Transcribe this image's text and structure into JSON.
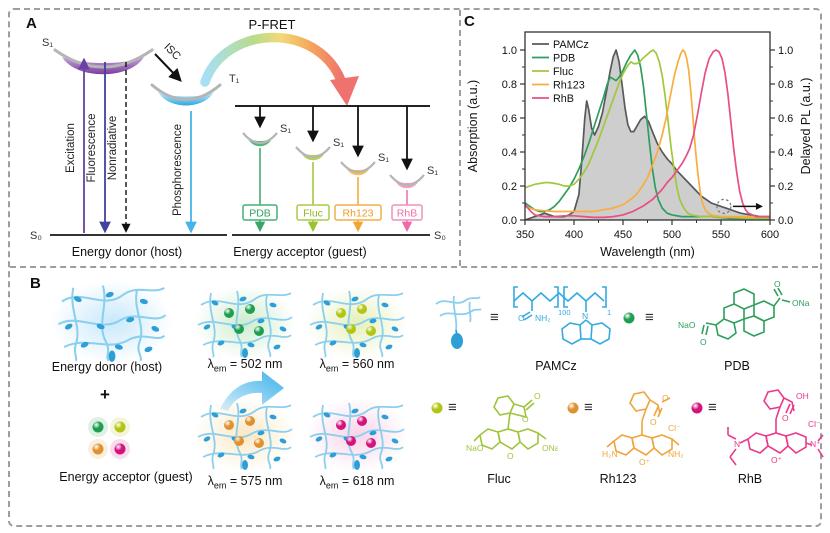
{
  "figure": {
    "panel_a": {
      "label": "A",
      "pfret_label": "P-FRET",
      "donor": {
        "s1": "S₁",
        "s0": "S₀",
        "t1": "T₁",
        "excitation": "Excitation",
        "fluorescence": "Fluorescence",
        "nonradiative": "Nonradiative",
        "isc": "ISC",
        "phosphorescence": "Phosphorescence",
        "caption": "Energy donor (host)"
      },
      "acceptor": {
        "s1": "S₁",
        "s0": "S₀",
        "caption": "Energy acceptor (guest)",
        "guests": [
          {
            "name": "PDB",
            "color": "#2f9e5c",
            "well": "#52b87c",
            "arrow": "#3aa566",
            "box": "#45b074"
          },
          {
            "name": "Fluc",
            "color": "#93b92a",
            "well": "#b6d254",
            "arrow": "#9cc32f",
            "box": "#a8cc45"
          },
          {
            "name": "Rh123",
            "color": "#ee9c20",
            "well": "#f4bd55",
            "arrow": "#f0a62f",
            "box": "#f3ae45"
          },
          {
            "name": "RhB",
            "color": "#ee6fa5",
            "well": "#f49ec5",
            "arrow": "#f06aaa",
            "box": "#f290bb"
          }
        ]
      },
      "palette": {
        "s1_well": "#8a4fa8",
        "t1_well": "#35abe2",
        "excitation_arrow": "#6b3fa3",
        "fluorescence_arrow": "#41419e",
        "phosphorescence_arrow": "#45b4e8",
        "pfret_gradient": [
          "#a8dff5",
          "#b8dc8c",
          "#f2d979",
          "#f5a95c",
          "#f0726e"
        ]
      }
    },
    "panel_b": {
      "label": "B",
      "donor_caption": "Energy donor (host)",
      "plus": "+",
      "acceptor_caption": "Energy acceptor (guest)",
      "equiv": "≡",
      "donor_glow": "#c9e8fb",
      "network_line_color": "#8bcfee",
      "network_dot_color": "#2d9fd6",
      "emissions": [
        {
          "lambda": "λ",
          "sub": "em",
          "value": "= 502 nm",
          "glow": "#cdeccd",
          "dot": "#1f9e4f"
        },
        {
          "lambda": "λ",
          "sub": "em",
          "value": "= 560 nm",
          "glow": "#e4f0bb",
          "dot": "#b3c513"
        },
        {
          "lambda": "λ",
          "sub": "em",
          "value": "= 575 nm",
          "glow": "#fbe8c4",
          "dot": "#e0912f"
        },
        {
          "lambda": "λ",
          "sub": "em",
          "value": "= 618 nm",
          "glow": "#f8d3e7",
          "dot": "#d4127c"
        }
      ],
      "molecules": {
        "pamcz": {
          "name": "PAMCz",
          "color": "#35aae1",
          "o": "O",
          "nh2": "NH₂",
          "n": "N",
          "sub100": "100",
          "sub1": "1"
        },
        "pdb": {
          "name": "PDB",
          "color": "#2f9e5c",
          "nao": "NaO",
          "o_left": "O",
          "o_right": "O",
          "ona": "ONa"
        },
        "fluc": {
          "name": "Fluc",
          "color": "#9fc53d",
          "nao": "NaO",
          "ona": "ONa",
          "o_ring": "O",
          "o_lactone": "O",
          "o_carbonyl": "O"
        },
        "rh123": {
          "name": "Rh123",
          "color": "#f0a43c",
          "h2n": "H₂N",
          "nh2": "NH₂",
          "o_plus": "O⁺",
          "cl": "Cl⁻",
          "o_ester1": "O",
          "o_ester2": "O"
        },
        "rhb": {
          "name": "RhB",
          "color": "#ea3a8c",
          "n": "N",
          "n_plus": "N⁺",
          "o_plus": "O⁺",
          "oh": "OH",
          "o_carbonyl": "O",
          "cl": "Cl⁻"
        }
      }
    },
    "panel_c": {
      "label": "C"
    }
  },
  "chart_data": {
    "type": "line",
    "xlabel": "Wavelength (nm)",
    "ylabel_left": "Absorption (a.u.)",
    "ylabel_right": "Delayed PL (a.u.)",
    "xlim": [
      350,
      600
    ],
    "ylim": [
      0.0,
      1.0
    ],
    "xticks": [
      350,
      400,
      450,
      500,
      550,
      600
    ],
    "yticks": [
      0.0,
      0.2,
      0.4,
      0.6,
      0.8,
      1.0
    ],
    "grid": false,
    "legend_position": "top-left",
    "annotation": {
      "type": "dashed-circle-right-arrow",
      "x_nm": 553,
      "y": 0.08
    },
    "series": [
      {
        "name": "PAMCz",
        "axis": "right",
        "color": "#58595b",
        "fill": "#c9c9c9",
        "points": [
          [
            350,
            0.0
          ],
          [
            355,
            0.01
          ],
          [
            360,
            0.02
          ],
          [
            365,
            0.03
          ],
          [
            370,
            0.04
          ],
          [
            375,
            0.03
          ],
          [
            380,
            0.02
          ],
          [
            390,
            0.02
          ],
          [
            395,
            0.03
          ],
          [
            400,
            0.05
          ],
          [
            405,
            0.15
          ],
          [
            408,
            0.35
          ],
          [
            411,
            0.6
          ],
          [
            413,
            0.7
          ],
          [
            415,
            0.65
          ],
          [
            418,
            0.54
          ],
          [
            421,
            0.5
          ],
          [
            425,
            0.55
          ],
          [
            429,
            0.63
          ],
          [
            433,
            0.75
          ],
          [
            437,
            0.88
          ],
          [
            440,
            0.96
          ],
          [
            443,
            1.0
          ],
          [
            446,
            0.93
          ],
          [
            449,
            0.8
          ],
          [
            452,
            0.66
          ],
          [
            455,
            0.56
          ],
          [
            458,
            0.52
          ],
          [
            461,
            0.52
          ],
          [
            464,
            0.55
          ],
          [
            468,
            0.59
          ],
          [
            472,
            0.61
          ],
          [
            476,
            0.58
          ],
          [
            480,
            0.52
          ],
          [
            485,
            0.45
          ],
          [
            490,
            0.4
          ],
          [
            495,
            0.36
          ],
          [
            500,
            0.33
          ],
          [
            505,
            0.29
          ],
          [
            510,
            0.26
          ],
          [
            515,
            0.23
          ],
          [
            520,
            0.2
          ],
          [
            525,
            0.17
          ],
          [
            530,
            0.14
          ],
          [
            535,
            0.12
          ],
          [
            540,
            0.1
          ],
          [
            545,
            0.09
          ],
          [
            550,
            0.08
          ],
          [
            555,
            0.07
          ],
          [
            560,
            0.06
          ],
          [
            565,
            0.05
          ],
          [
            570,
            0.04
          ],
          [
            575,
            0.035
          ],
          [
            580,
            0.03
          ],
          [
            590,
            0.02
          ],
          [
            600,
            0.02
          ]
        ]
      },
      {
        "name": "PDB",
        "axis": "left",
        "color": "#2f9e5c",
        "points": [
          [
            350,
            0.1
          ],
          [
            355,
            0.08
          ],
          [
            360,
            0.06
          ],
          [
            365,
            0.05
          ],
          [
            370,
            0.05
          ],
          [
            375,
            0.06
          ],
          [
            380,
            0.08
          ],
          [
            385,
            0.11
          ],
          [
            390,
            0.15
          ],
          [
            395,
            0.19
          ],
          [
            400,
            0.24
          ],
          [
            405,
            0.3
          ],
          [
            410,
            0.37
          ],
          [
            415,
            0.45
          ],
          [
            420,
            0.54
          ],
          [
            425,
            0.63
          ],
          [
            430,
            0.72
          ],
          [
            434,
            0.8
          ],
          [
            437,
            0.84
          ],
          [
            440,
            0.83
          ],
          [
            443,
            0.82
          ],
          [
            446,
            0.84
          ],
          [
            450,
            0.88
          ],
          [
            454,
            0.93
          ],
          [
            458,
            0.97
          ],
          [
            462,
            1.0
          ],
          [
            465,
            0.97
          ],
          [
            468,
            0.9
          ],
          [
            471,
            0.78
          ],
          [
            474,
            0.62
          ],
          [
            477,
            0.45
          ],
          [
            480,
            0.3
          ],
          [
            483,
            0.19
          ],
          [
            486,
            0.12
          ],
          [
            490,
            0.07
          ],
          [
            495,
            0.04
          ],
          [
            500,
            0.03
          ],
          [
            510,
            0.02
          ],
          [
            520,
            0.02
          ],
          [
            540,
            0.02
          ],
          [
            560,
            0.01
          ],
          [
            580,
            0.01
          ],
          [
            600,
            0.01
          ]
        ]
      },
      {
        "name": "Fluc",
        "axis": "left",
        "color": "#a2c73d",
        "points": [
          [
            350,
            0.19
          ],
          [
            355,
            0.2
          ],
          [
            360,
            0.21
          ],
          [
            370,
            0.22
          ],
          [
            375,
            0.22
          ],
          [
            380,
            0.215
          ],
          [
            385,
            0.21
          ],
          [
            390,
            0.2
          ],
          [
            395,
            0.2
          ],
          [
            400,
            0.21
          ],
          [
            405,
            0.24
          ],
          [
            410,
            0.28
          ],
          [
            415,
            0.33
          ],
          [
            420,
            0.4
          ],
          [
            425,
            0.47
          ],
          [
            430,
            0.55
          ],
          [
            435,
            0.63
          ],
          [
            440,
            0.71
          ],
          [
            445,
            0.79
          ],
          [
            450,
            0.86
          ],
          [
            455,
            0.91
          ],
          [
            458,
            0.93
          ],
          [
            461,
            0.92
          ],
          [
            464,
            0.92
          ],
          [
            467,
            0.93
          ],
          [
            470,
            0.95
          ],
          [
            474,
            0.97
          ],
          [
            478,
            0.99
          ],
          [
            481,
            1.0
          ],
          [
            484,
            0.98
          ],
          [
            487,
            0.93
          ],
          [
            490,
            0.85
          ],
          [
            493,
            0.73
          ],
          [
            496,
            0.58
          ],
          [
            499,
            0.43
          ],
          [
            502,
            0.3
          ],
          [
            505,
            0.19
          ],
          [
            508,
            0.12
          ],
          [
            512,
            0.07
          ],
          [
            516,
            0.04
          ],
          [
            520,
            0.03
          ],
          [
            530,
            0.02
          ],
          [
            540,
            0.02
          ],
          [
            560,
            0.015
          ],
          [
            580,
            0.01
          ],
          [
            600,
            0.01
          ]
        ]
      },
      {
        "name": "Rh123",
        "axis": "left",
        "color": "#f9ad3d",
        "points": [
          [
            350,
            0.08
          ],
          [
            355,
            0.07
          ],
          [
            360,
            0.06
          ],
          [
            370,
            0.055
          ],
          [
            380,
            0.05
          ],
          [
            390,
            0.05
          ],
          [
            400,
            0.05
          ],
          [
            410,
            0.05
          ],
          [
            420,
            0.05
          ],
          [
            430,
            0.06
          ],
          [
            440,
            0.07
          ],
          [
            450,
            0.09
          ],
          [
            455,
            0.11
          ],
          [
            460,
            0.13
          ],
          [
            465,
            0.16
          ],
          [
            470,
            0.2
          ],
          [
            475,
            0.25
          ],
          [
            480,
            0.32
          ],
          [
            485,
            0.4
          ],
          [
            490,
            0.5
          ],
          [
            494,
            0.6
          ],
          [
            498,
            0.72
          ],
          [
            502,
            0.84
          ],
          [
            506,
            0.93
          ],
          [
            509,
            0.98
          ],
          [
            511,
            1.0
          ],
          [
            513,
            0.99
          ],
          [
            515,
            0.95
          ],
          [
            517,
            0.88
          ],
          [
            519,
            0.77
          ],
          [
            521,
            0.63
          ],
          [
            523,
            0.48
          ],
          [
            525,
            0.35
          ],
          [
            527,
            0.24
          ],
          [
            529,
            0.16
          ],
          [
            531,
            0.1
          ],
          [
            534,
            0.06
          ],
          [
            537,
            0.04
          ],
          [
            540,
            0.03
          ],
          [
            545,
            0.025
          ],
          [
            550,
            0.02
          ],
          [
            560,
            0.02
          ],
          [
            580,
            0.02
          ],
          [
            600,
            0.02
          ]
        ]
      },
      {
        "name": "RhB",
        "axis": "left",
        "color": "#e94e84",
        "points": [
          [
            350,
            0.09
          ],
          [
            353,
            0.07
          ],
          [
            356,
            0.05
          ],
          [
            360,
            0.03
          ],
          [
            365,
            0.025
          ],
          [
            370,
            0.02
          ],
          [
            380,
            0.02
          ],
          [
            390,
            0.025
          ],
          [
            400,
            0.025
          ],
          [
            410,
            0.02
          ],
          [
            420,
            0.015
          ],
          [
            430,
            0.015
          ],
          [
            440,
            0.02
          ],
          [
            450,
            0.03
          ],
          [
            455,
            0.04
          ],
          [
            460,
            0.05
          ],
          [
            465,
            0.065
          ],
          [
            470,
            0.08
          ],
          [
            475,
            0.1
          ],
          [
            480,
            0.12
          ],
          [
            485,
            0.15
          ],
          [
            490,
            0.18
          ],
          [
            495,
            0.22
          ],
          [
            500,
            0.25
          ],
          [
            505,
            0.29
          ],
          [
            510,
            0.33
          ],
          [
            514,
            0.37
          ],
          [
            518,
            0.42
          ],
          [
            522,
            0.5
          ],
          [
            526,
            0.62
          ],
          [
            530,
            0.75
          ],
          [
            534,
            0.87
          ],
          [
            538,
            0.95
          ],
          [
            542,
            0.99
          ],
          [
            545,
            1.0
          ],
          [
            548,
            0.99
          ],
          [
            551,
            0.95
          ],
          [
            554,
            0.87
          ],
          [
            557,
            0.74
          ],
          [
            560,
            0.58
          ],
          [
            563,
            0.42
          ],
          [
            566,
            0.28
          ],
          [
            569,
            0.17
          ],
          [
            572,
            0.1
          ],
          [
            575,
            0.06
          ],
          [
            578,
            0.04
          ],
          [
            582,
            0.03
          ],
          [
            586,
            0.02
          ],
          [
            590,
            0.02
          ],
          [
            600,
            0.02
          ]
        ]
      }
    ]
  }
}
